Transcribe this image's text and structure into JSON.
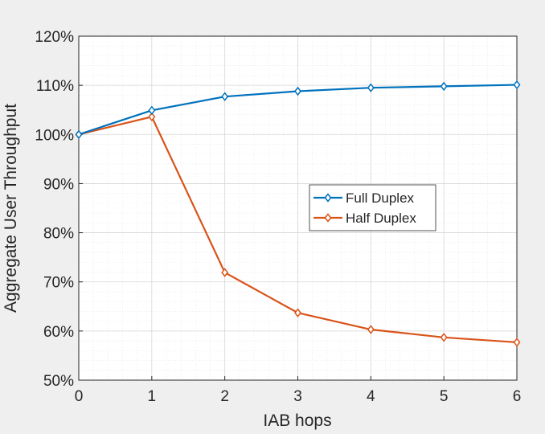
{
  "chart_data": {
    "type": "line",
    "title": "",
    "xlabel": "IAB hops",
    "ylabel": "Aggregate User Throughput",
    "x": [
      0,
      1,
      2,
      3,
      4,
      5,
      6
    ],
    "xlim": [
      0,
      6
    ],
    "ylim": [
      50,
      120
    ],
    "xticks": [
      "0",
      "1",
      "2",
      "3",
      "4",
      "5",
      "6"
    ],
    "yticks": [
      "50%",
      "60%",
      "70%",
      "80%",
      "90%",
      "100%",
      "110%",
      "120%"
    ],
    "ytick_values": [
      50,
      60,
      70,
      80,
      90,
      100,
      110,
      120
    ],
    "grid": true,
    "minor_grid": true,
    "legend_position": "center-right",
    "series": [
      {
        "name": "Full Duplex",
        "color": "#0072BD",
        "marker": "diamond",
        "values": [
          100,
          104.9,
          107.7,
          108.8,
          109.5,
          109.8,
          110.1
        ]
      },
      {
        "name": "Half Duplex",
        "color": "#D95319",
        "marker": "diamond",
        "values": [
          100,
          103.6,
          71.9,
          63.7,
          60.3,
          58.7,
          57.7
        ]
      }
    ]
  }
}
